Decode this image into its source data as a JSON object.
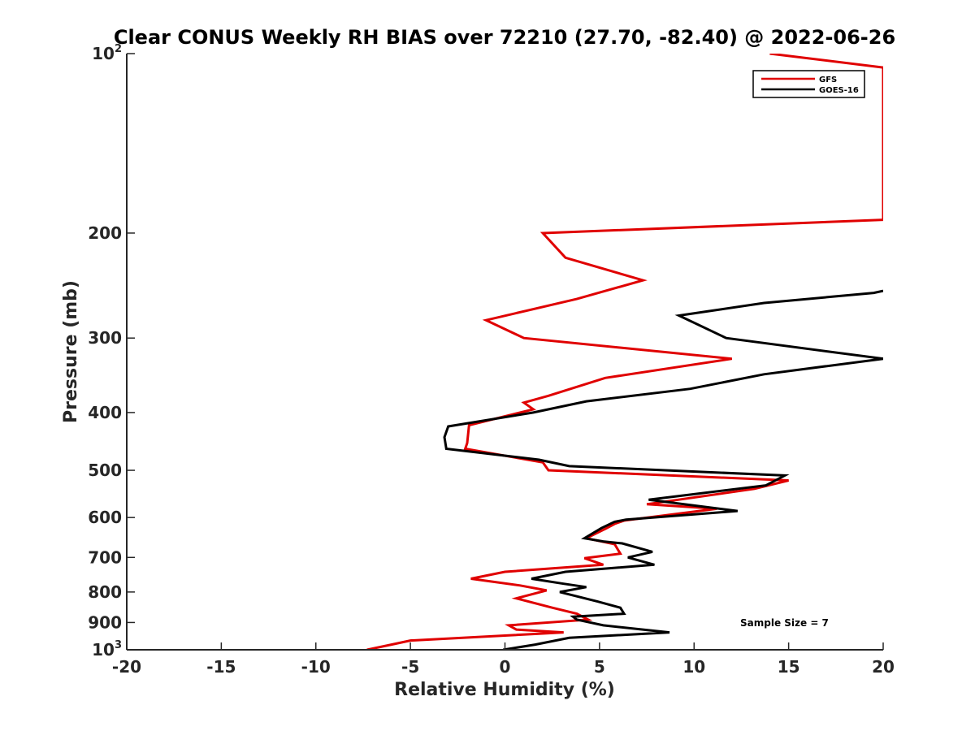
{
  "chart_data": {
    "type": "line",
    "title": "Clear CONUS Weekly RH BIAS over 72210 (27.70, -82.40) @ 2022-06-26",
    "xlabel": "Relative Humidity (%)",
    "ylabel": "Pressure (mb)",
    "xlim": [
      -20,
      20
    ],
    "ylim": [
      100,
      1000
    ],
    "yscale": "log",
    "y_reversed": true,
    "grid": false,
    "legend_position": "top-right",
    "x_ticks": [
      "-20",
      "-15",
      "-10",
      "-5",
      "0",
      "5",
      "10",
      "15",
      "20"
    ],
    "y_ticks": [
      {
        "p": 100,
        "base": "10",
        "exp": "2"
      },
      {
        "p": 200,
        "label": "200"
      },
      {
        "p": 300,
        "label": "300"
      },
      {
        "p": 400,
        "label": "400"
      },
      {
        "p": 500,
        "label": "500"
      },
      {
        "p": 600,
        "label": "600"
      },
      {
        "p": 700,
        "label": "700"
      },
      {
        "p": 800,
        "label": "800"
      },
      {
        "p": 900,
        "label": "900"
      },
      {
        "p": 1000,
        "base": "10",
        "exp": "3"
      }
    ],
    "series": [
      {
        "name": "GFS",
        "color": "#e00000",
        "points": [
          [
            14,
            100
          ],
          [
            20,
            105.5
          ],
          [
            20,
            190
          ],
          [
            2,
            200
          ],
          [
            3.2,
            220
          ],
          [
            7.3,
            240
          ],
          [
            3.8,
            258
          ],
          [
            -1,
            280
          ],
          [
            1,
            300
          ],
          [
            12,
            325
          ],
          [
            5.3,
            350
          ],
          [
            2.3,
            375
          ],
          [
            1,
            385
          ],
          [
            1.5,
            395
          ],
          [
            -1.9,
            420
          ],
          [
            -2,
            450
          ],
          [
            -2.1,
            460
          ],
          [
            2,
            485
          ],
          [
            2.3,
            500
          ],
          [
            15,
            520
          ],
          [
            13.2,
            537
          ],
          [
            7.5,
            570
          ],
          [
            11.2,
            580
          ],
          [
            6.3,
            607
          ],
          [
            5.8,
            615
          ],
          [
            5.3,
            627
          ],
          [
            4.3,
            650
          ],
          [
            5.8,
            665
          ],
          [
            6.1,
            690
          ],
          [
            4.2,
            702
          ],
          [
            5.2,
            720
          ],
          [
            0,
            740
          ],
          [
            -1.8,
            760
          ],
          [
            0.8,
            780
          ],
          [
            2.2,
            795
          ],
          [
            0.6,
            820
          ],
          [
            2.5,
            850
          ],
          [
            3.8,
            870
          ],
          [
            4.4,
            890
          ],
          [
            0.2,
            910
          ],
          [
            0.6,
            925
          ],
          [
            3.1,
            935
          ],
          [
            0.4,
            945
          ],
          [
            -5,
            965
          ],
          [
            -6,
            980
          ],
          [
            -7.3,
            1000
          ]
        ]
      },
      {
        "name": "GOES-16",
        "color": "#000000",
        "points": [
          [
            20,
            250
          ],
          [
            19.5,
            252
          ],
          [
            13.7,
            262
          ],
          [
            9.2,
            275
          ],
          [
            11.7,
            300
          ],
          [
            20,
            325
          ],
          [
            13.7,
            345
          ],
          [
            9.8,
            365
          ],
          [
            4.3,
            383
          ],
          [
            1.5,
            400
          ],
          [
            -3,
            422
          ],
          [
            -3.2,
            440
          ],
          [
            -3.1,
            460
          ],
          [
            1.8,
            480
          ],
          [
            3.4,
            492
          ],
          [
            14.8,
            510
          ],
          [
            13.8,
            530
          ],
          [
            7.6,
            560
          ],
          [
            12.3,
            585
          ],
          [
            6.4,
            605
          ],
          [
            5.8,
            610
          ],
          [
            5.1,
            625
          ],
          [
            4.2,
            650
          ],
          [
            5.2,
            658
          ],
          [
            6.2,
            663
          ],
          [
            7.8,
            685
          ],
          [
            6.5,
            700
          ],
          [
            7.9,
            720
          ],
          [
            3.2,
            740
          ],
          [
            1.4,
            760
          ],
          [
            3.1,
            775
          ],
          [
            4.3,
            785
          ],
          [
            2.9,
            800
          ],
          [
            4.9,
            830
          ],
          [
            6.1,
            850
          ],
          [
            6.3,
            870
          ],
          [
            3.6,
            880
          ],
          [
            3.8,
            890
          ],
          [
            5.2,
            910
          ],
          [
            8.7,
            935
          ],
          [
            3.4,
            955
          ],
          [
            1.6,
            980
          ],
          [
            -0.1,
            1000
          ]
        ]
      }
    ],
    "annotations": [
      "Sample Size = 7"
    ]
  }
}
